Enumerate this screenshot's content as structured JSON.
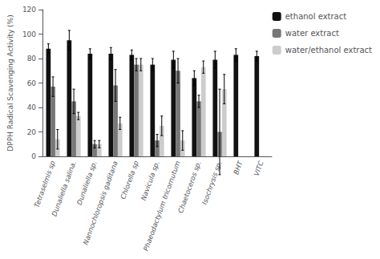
{
  "chart_data": {
    "type": "bar",
    "categories": [
      "Tetraselmis sp",
      "Dunaliella salina.",
      "Dunaliella sp.",
      "Nannochloropsis gaditana",
      "Chlorella sp",
      "Navicula sp.",
      "Phaeodactylum tricornutum",
      "Chaetoceros sp.",
      "Isochrysis sp.",
      "BHT",
      "VITC"
    ],
    "series": [
      {
        "name": "ethanol extract",
        "color": "#111111",
        "values": [
          88,
          95,
          84,
          84,
          83,
          75,
          79,
          64,
          79,
          83,
          82
        ],
        "errors": [
          4,
          8,
          4,
          5,
          4,
          5,
          7,
          6,
          7,
          5,
          4
        ]
      },
      {
        "name": "water extract",
        "color": "#777777",
        "values": [
          57,
          45,
          10,
          58,
          75,
          13,
          70,
          45,
          20,
          null,
          null
        ],
        "errors": [
          8,
          10,
          3,
          13,
          5,
          5,
          10,
          5,
          35,
          null,
          null
        ]
      },
      {
        "name": "water/ethanol extract",
        "color": "#cccccc",
        "values": [
          14,
          33,
          10,
          27,
          75,
          25,
          13,
          73,
          55,
          null,
          null
        ],
        "errors": [
          8,
          3,
          3,
          5,
          5,
          8,
          8,
          5,
          12,
          null,
          null
        ]
      }
    ],
    "ylabel": "DPPH Radical Scavenging Activity (%)",
    "ylim": [
      0,
      120
    ],
    "yticks": [
      0,
      20,
      40,
      60,
      80,
      100,
      120
    ],
    "grid": false,
    "legend": "upper right"
  }
}
